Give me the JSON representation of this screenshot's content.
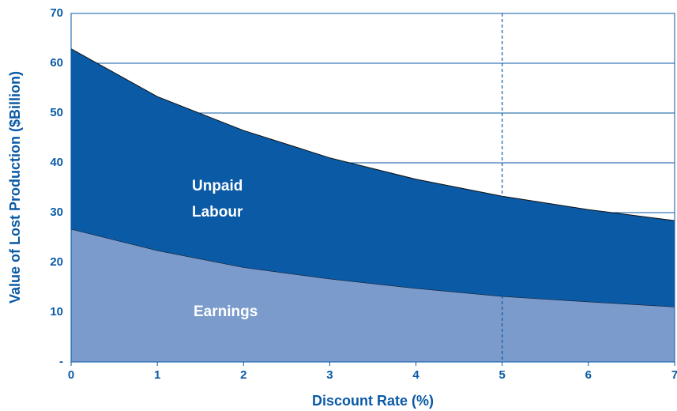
{
  "chart_data": {
    "type": "stacked_area",
    "x_label": "Discount Rate (%)",
    "y_label": "Value of Lost Production ($Billion)",
    "x": [
      0,
      1,
      2,
      3,
      4,
      5,
      6,
      7
    ],
    "series": [
      {
        "name": "Earnings",
        "color": "#7b9bcc",
        "values": [
          26.7,
          22.4,
          19.0,
          16.7,
          14.8,
          13.2,
          12.1,
          11.1
        ]
      },
      {
        "name": "Unpaid Labour",
        "color": "#0a5aa6",
        "values": [
          36.2,
          30.9,
          27.5,
          24.3,
          21.9,
          20.1,
          18.5,
          17.3
        ]
      }
    ],
    "xlim": [
      0,
      7
    ],
    "xticks": [
      0,
      1,
      2,
      3,
      4,
      5,
      6,
      7
    ],
    "ylim": [
      0,
      70
    ],
    "yticks": [
      {
        "value": 0,
        "label": "-"
      },
      10,
      20,
      30,
      40,
      50,
      60,
      70
    ],
    "grid": true,
    "vline": 5
  }
}
